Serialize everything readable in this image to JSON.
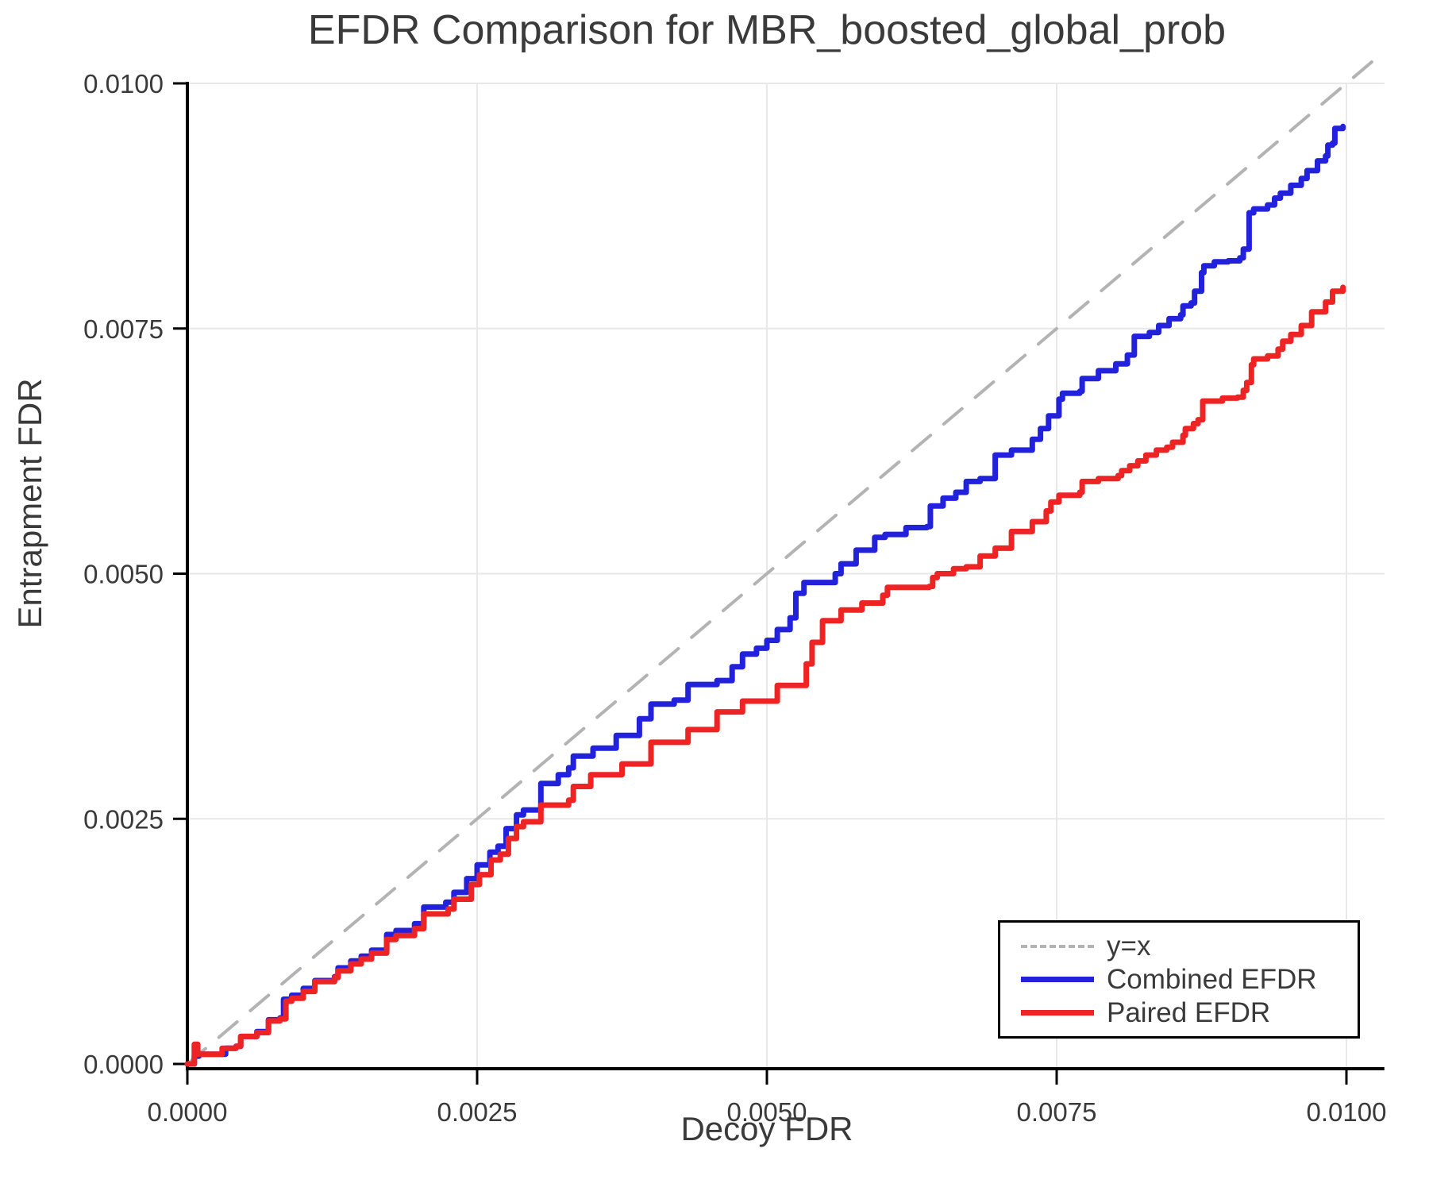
{
  "chart_data": {
    "type": "line",
    "title": "EFDR Comparison for MBR_boosted_global_prob",
    "xlabel": "Decoy FDR",
    "ylabel": "Entrapment FDR",
    "xlim": [
      0.0,
      0.0103
    ],
    "ylim": [
      0.0,
      0.0103
    ],
    "grid": true,
    "legend_position": "inside-bottom-right",
    "xticks": [
      0.0,
      0.0025,
      0.005,
      0.0075,
      0.01
    ],
    "xtick_labels": [
      "0.0000",
      "0.0025",
      "0.0050",
      "0.0075",
      "0.0100"
    ],
    "yticks": [
      0.0,
      0.0025,
      0.005,
      0.0075,
      0.01
    ],
    "ytick_labels": [
      "0.0000",
      "0.0025",
      "0.0050",
      "0.0075",
      "0.0100"
    ],
    "colors": {
      "identity": "#b3b3b3",
      "combined": "#2222dd",
      "paired": "#ee2424",
      "grid": "#e8e8e8",
      "axis": "#000000",
      "text": "#3a3a3a"
    },
    "series": [
      {
        "name": "y=x",
        "style": "dashed",
        "step": false,
        "color": "#b3b3b3",
        "points": [
          [
            0.0,
            0.0
          ],
          [
            0.0103,
            0.0103
          ]
        ]
      },
      {
        "name": "Combined EFDR",
        "style": "solid",
        "step": true,
        "color": "#2222dd",
        "points": [
          [
            0.0,
            0.0
          ],
          [
            6e-05,
            8e-05
          ],
          [
            0.0001,
            0.0001
          ],
          [
            0.0003,
            0.0001
          ],
          [
            0.00033,
            0.00016
          ],
          [
            0.00042,
            0.00018
          ],
          [
            0.00046,
            0.00028
          ],
          [
            0.0006,
            0.00033
          ],
          [
            0.0007,
            0.00045
          ],
          [
            0.0008,
            0.00047
          ],
          [
            0.00083,
            0.00066
          ],
          [
            0.0009,
            0.0007
          ],
          [
            0.001,
            0.00077
          ],
          [
            0.0011,
            0.00085
          ],
          [
            0.00127,
            0.00089
          ],
          [
            0.0013,
            0.00098
          ],
          [
            0.00141,
            0.00105
          ],
          [
            0.0015,
            0.0011
          ],
          [
            0.00159,
            0.00116
          ],
          [
            0.00172,
            0.00132
          ],
          [
            0.0018,
            0.00136
          ],
          [
            0.00196,
            0.00143
          ],
          [
            0.00204,
            0.0016
          ],
          [
            0.00223,
            0.00165
          ],
          [
            0.0023,
            0.00175
          ],
          [
            0.00241,
            0.00189
          ],
          [
            0.0025,
            0.00203
          ],
          [
            0.00261,
            0.00216
          ],
          [
            0.00268,
            0.00222
          ],
          [
            0.00275,
            0.0024
          ],
          [
            0.00284,
            0.00254
          ],
          [
            0.0029,
            0.00259
          ],
          [
            0.00305,
            0.00286
          ],
          [
            0.0032,
            0.00295
          ],
          [
            0.00329,
            0.00302
          ],
          [
            0.00333,
            0.00314
          ],
          [
            0.0035,
            0.00322
          ],
          [
            0.0037,
            0.00335
          ],
          [
            0.0039,
            0.00352
          ],
          [
            0.004,
            0.00367
          ],
          [
            0.0042,
            0.00371
          ],
          [
            0.00432,
            0.00387
          ],
          [
            0.00457,
            0.00391
          ],
          [
            0.0047,
            0.00405
          ],
          [
            0.00479,
            0.00418
          ],
          [
            0.00491,
            0.00424
          ],
          [
            0.005,
            0.00432
          ],
          [
            0.00509,
            0.00443
          ],
          [
            0.0052,
            0.00455
          ],
          [
            0.00525,
            0.0048
          ],
          [
            0.00532,
            0.00491
          ],
          [
            0.00559,
            0.005
          ],
          [
            0.00564,
            0.0051
          ],
          [
            0.00577,
            0.00524
          ],
          [
            0.00593,
            0.00537
          ],
          [
            0.00602,
            0.0054
          ],
          [
            0.0062,
            0.00547
          ],
          [
            0.00638,
            0.00548
          ],
          [
            0.00641,
            0.00569
          ],
          [
            0.00652,
            0.00577
          ],
          [
            0.00663,
            0.00583
          ],
          [
            0.00672,
            0.00594
          ],
          [
            0.00684,
            0.00597
          ],
          [
            0.00697,
            0.00621
          ],
          [
            0.00711,
            0.00626
          ],
          [
            0.00729,
            0.00637
          ],
          [
            0.00736,
            0.00648
          ],
          [
            0.00743,
            0.00661
          ],
          [
            0.00752,
            0.00678
          ],
          [
            0.00755,
            0.00684
          ],
          [
            0.0077,
            0.00686
          ],
          [
            0.00772,
            0.00699
          ],
          [
            0.00786,
            0.00707
          ],
          [
            0.00801,
            0.00714
          ],
          [
            0.00811,
            0.00723
          ],
          [
            0.00817,
            0.00742
          ],
          [
            0.0083,
            0.00746
          ],
          [
            0.00838,
            0.00753
          ],
          [
            0.00847,
            0.0076
          ],
          [
            0.00857,
            0.00764
          ],
          [
            0.00859,
            0.00773
          ],
          [
            0.00866,
            0.00776
          ],
          [
            0.00869,
            0.00788
          ],
          [
            0.00875,
            0.00807
          ],
          [
            0.00877,
            0.00814
          ],
          [
            0.00886,
            0.00818
          ],
          [
            0.00898,
            0.00819
          ],
          [
            0.00908,
            0.00822
          ],
          [
            0.00911,
            0.00831
          ],
          [
            0.00916,
            0.00868
          ],
          [
            0.0092,
            0.00872
          ],
          [
            0.00932,
            0.00876
          ],
          [
            0.00938,
            0.00883
          ],
          [
            0.00943,
            0.00888
          ],
          [
            0.00952,
            0.00896
          ],
          [
            0.00961,
            0.00903
          ],
          [
            0.00966,
            0.00911
          ],
          [
            0.00975,
            0.00921
          ],
          [
            0.00982,
            0.00926
          ],
          [
            0.00984,
            0.00937
          ],
          [
            0.00988,
            0.00939
          ],
          [
            0.0099,
            0.00954
          ],
          [
            0.00997,
            0.00956
          ]
        ]
      },
      {
        "name": "Paired EFDR",
        "style": "solid",
        "step": true,
        "color": "#ee2424",
        "points": [
          [
            0.0,
            0.0
          ],
          [
            4e-05,
            0.0
          ],
          [
            6e-05,
            0.0002
          ],
          [
            9e-05,
            0.0001
          ],
          [
            0.00025,
            0.0001
          ],
          [
            0.0003,
            0.00016
          ],
          [
            0.00042,
            0.00018
          ],
          [
            0.00046,
            0.00028
          ],
          [
            0.0006,
            0.00032
          ],
          [
            0.0007,
            0.00044
          ],
          [
            0.0008,
            0.00046
          ],
          [
            0.00085,
            0.00064
          ],
          [
            0.0009,
            0.00067
          ],
          [
            0.001,
            0.00074
          ],
          [
            0.0011,
            0.00084
          ],
          [
            0.00127,
            0.00088
          ],
          [
            0.0013,
            0.00095
          ],
          [
            0.00141,
            0.00102
          ],
          [
            0.0015,
            0.00107
          ],
          [
            0.00159,
            0.00113
          ],
          [
            0.00172,
            0.00127
          ],
          [
            0.0018,
            0.00131
          ],
          [
            0.00196,
            0.00138
          ],
          [
            0.00204,
            0.00153
          ],
          [
            0.00225,
            0.00158
          ],
          [
            0.0023,
            0.00168
          ],
          [
            0.00245,
            0.00183
          ],
          [
            0.00252,
            0.00193
          ],
          [
            0.00262,
            0.00208
          ],
          [
            0.0027,
            0.00214
          ],
          [
            0.00277,
            0.0023
          ],
          [
            0.00284,
            0.00242
          ],
          [
            0.0029,
            0.00247
          ],
          [
            0.00305,
            0.00264
          ],
          [
            0.00329,
            0.00269
          ],
          [
            0.00333,
            0.00283
          ],
          [
            0.00348,
            0.00295
          ],
          [
            0.00375,
            0.00306
          ],
          [
            0.004,
            0.00328
          ],
          [
            0.00432,
            0.00341
          ],
          [
            0.00457,
            0.00359
          ],
          [
            0.00479,
            0.0037
          ],
          [
            0.00509,
            0.00386
          ],
          [
            0.00534,
            0.00408
          ],
          [
            0.00539,
            0.0043
          ],
          [
            0.00548,
            0.00452
          ],
          [
            0.00564,
            0.00463
          ],
          [
            0.00582,
            0.0047
          ],
          [
            0.006,
            0.00478
          ],
          [
            0.00604,
            0.00486
          ],
          [
            0.0064,
            0.00487
          ],
          [
            0.00643,
            0.00496
          ],
          [
            0.00647,
            0.005
          ],
          [
            0.00661,
            0.00505
          ],
          [
            0.00672,
            0.00507
          ],
          [
            0.00684,
            0.00518
          ],
          [
            0.00697,
            0.00526
          ],
          [
            0.00711,
            0.00543
          ],
          [
            0.00729,
            0.00553
          ],
          [
            0.00741,
            0.00564
          ],
          [
            0.00745,
            0.00573
          ],
          [
            0.00752,
            0.0058
          ],
          [
            0.0077,
            0.00583
          ],
          [
            0.00772,
            0.00594
          ],
          [
            0.00786,
            0.00597
          ],
          [
            0.00803,
            0.006
          ],
          [
            0.00806,
            0.00605
          ],
          [
            0.00813,
            0.0061
          ],
          [
            0.0082,
            0.00615
          ],
          [
            0.00827,
            0.00621
          ],
          [
            0.00836,
            0.00626
          ],
          [
            0.00845,
            0.00629
          ],
          [
            0.0085,
            0.00634
          ],
          [
            0.00859,
            0.00641
          ],
          [
            0.00861,
            0.00648
          ],
          [
            0.00868,
            0.00653
          ],
          [
            0.00872,
            0.00657
          ],
          [
            0.00876,
            0.00676
          ],
          [
            0.00893,
            0.00679
          ],
          [
            0.00906,
            0.0068
          ],
          [
            0.00911,
            0.00687
          ],
          [
            0.00914,
            0.00695
          ],
          [
            0.00918,
            0.00713
          ],
          [
            0.0092,
            0.00719
          ],
          [
            0.00932,
            0.00722
          ],
          [
            0.00941,
            0.00729
          ],
          [
            0.00945,
            0.00737
          ],
          [
            0.00952,
            0.00744
          ],
          [
            0.00961,
            0.00753
          ],
          [
            0.0097,
            0.00767
          ],
          [
            0.00982,
            0.00777
          ],
          [
            0.00988,
            0.00788
          ],
          [
            0.00997,
            0.00792
          ]
        ]
      }
    ],
    "legend": {
      "entries": [
        "y=x",
        "Combined EFDR",
        "Paired EFDR"
      ]
    }
  }
}
